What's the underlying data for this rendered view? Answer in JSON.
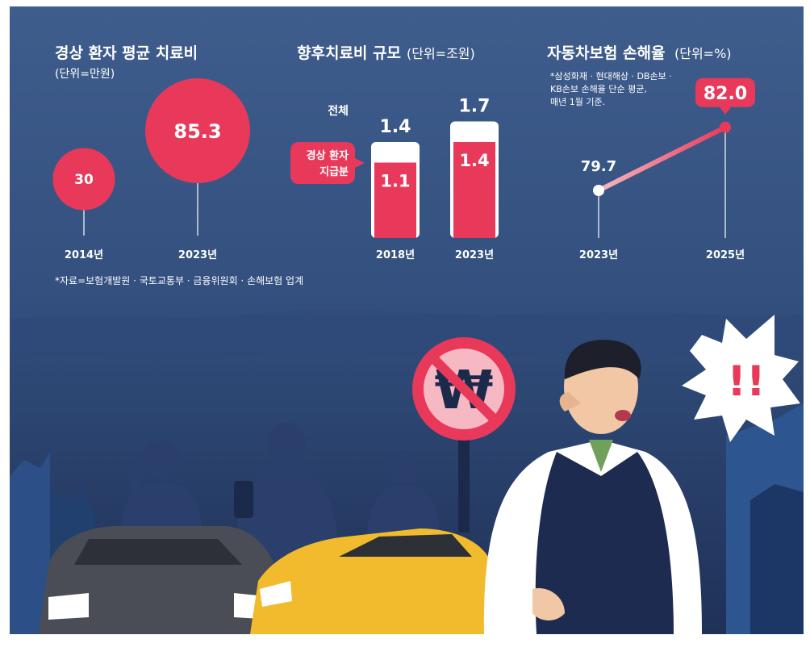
{
  "colors": {
    "bg_top": "#3d5a88",
    "bg_bottom": "#20345a",
    "accent": "#e8395a",
    "accent_light": "#f6b8c3",
    "bar_top": "#ffffff",
    "text": "#ffffff",
    "car_yellow": "#f2bb2e",
    "car_dark": "#4a4d55",
    "silhouette": "#2a3f6c"
  },
  "source_note": "*자료=보험개발원 · 국토교통부 · 금융위원회 · 손해보험 업계",
  "chart_data": [
    {
      "type": "bubble",
      "title": "경상 환자 평균 치료비",
      "unit": "(단위=만원)",
      "categories": [
        "2014년",
        "2023년"
      ],
      "values": [
        30,
        85.3
      ],
      "value_labels": [
        "30",
        "85.3"
      ]
    },
    {
      "type": "bar",
      "title": "향후치료비 규모",
      "unit": "(단위=조원)",
      "categories": [
        "2018년",
        "2023년"
      ],
      "series": [
        {
          "name": "전체",
          "values": [
            1.4,
            1.7
          ],
          "labels": [
            "1.4",
            "1.7"
          ]
        },
        {
          "name": "경상 환자 지급분",
          "values": [
            1.1,
            1.4
          ],
          "labels": [
            "1.1",
            "1.4"
          ]
        }
      ],
      "legend_total": "전체",
      "legend_part_line1": "경상 환자",
      "legend_part_line2": "지급분"
    },
    {
      "type": "line",
      "title": "자동차보험 손해율",
      "unit": "(단위=%)",
      "note_lines": [
        "*삼성화재 · 현대해상 · DB손보 ·",
        "KB손보 손해율 단순 평균,",
        "매년 1월 기준."
      ],
      "categories": [
        "2023년",
        "2025년"
      ],
      "values": [
        79.7,
        82.0
      ],
      "value_labels": [
        "79.7",
        "82.0"
      ]
    }
  ],
  "illustration": {
    "sign_icon": "no-won-sign-icon",
    "sign_glyph": "₩",
    "exclaim_icon": "exclamation-burst-icon",
    "exclaim_glyph": "!!"
  }
}
